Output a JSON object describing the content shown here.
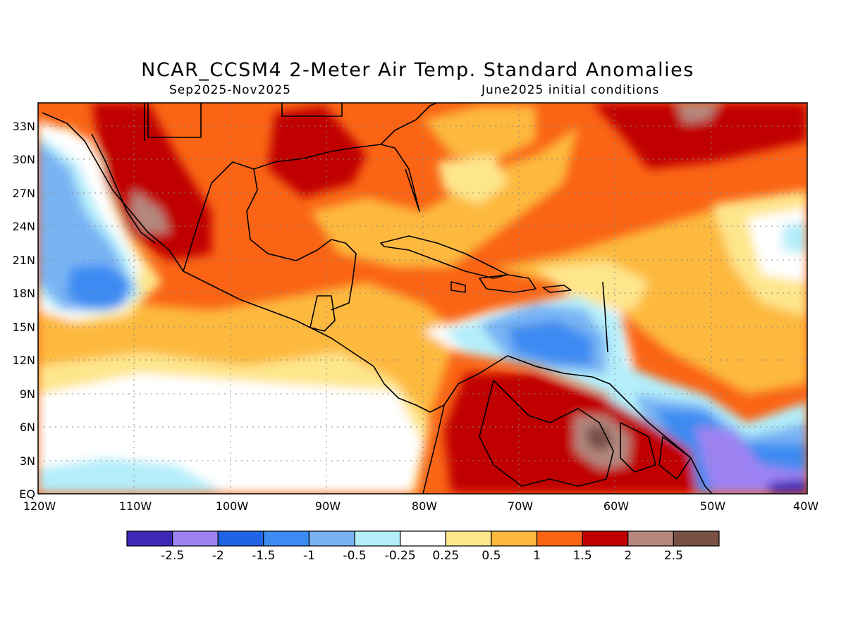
{
  "title": "NCAR_CCSM4 2-Meter Air Temp. Standard Anomalies",
  "subtitle_left": "Sep2025-Nov2025",
  "subtitle_right": "June2025 initial conditions",
  "map": {
    "lat_ticks": [
      "33N",
      "30N",
      "27N",
      "24N",
      "21N",
      "18N",
      "15N",
      "12N",
      "9N",
      "6N",
      "3N",
      "EQ"
    ],
    "lon_ticks": [
      "120W",
      "110W",
      "100W",
      "90W",
      "80W",
      "70W",
      "60W",
      "50W",
      "40W"
    ]
  },
  "colorbar": {
    "colors": [
      "#3d28b8",
      "#9d82f2",
      "#1f64e6",
      "#3c8bf2",
      "#78b4f4",
      "#b4eefa",
      "#ffffff",
      "#fee68c",
      "#fdb93c",
      "#fa6414",
      "#c00000",
      "#b4887e",
      "#785046"
    ],
    "labels": [
      "-2.5",
      "-2",
      "-1.5",
      "-1",
      "-0.5",
      "-0.25",
      "0.25",
      "0.5",
      "1",
      "1.5",
      "2",
      "2.5"
    ]
  }
}
